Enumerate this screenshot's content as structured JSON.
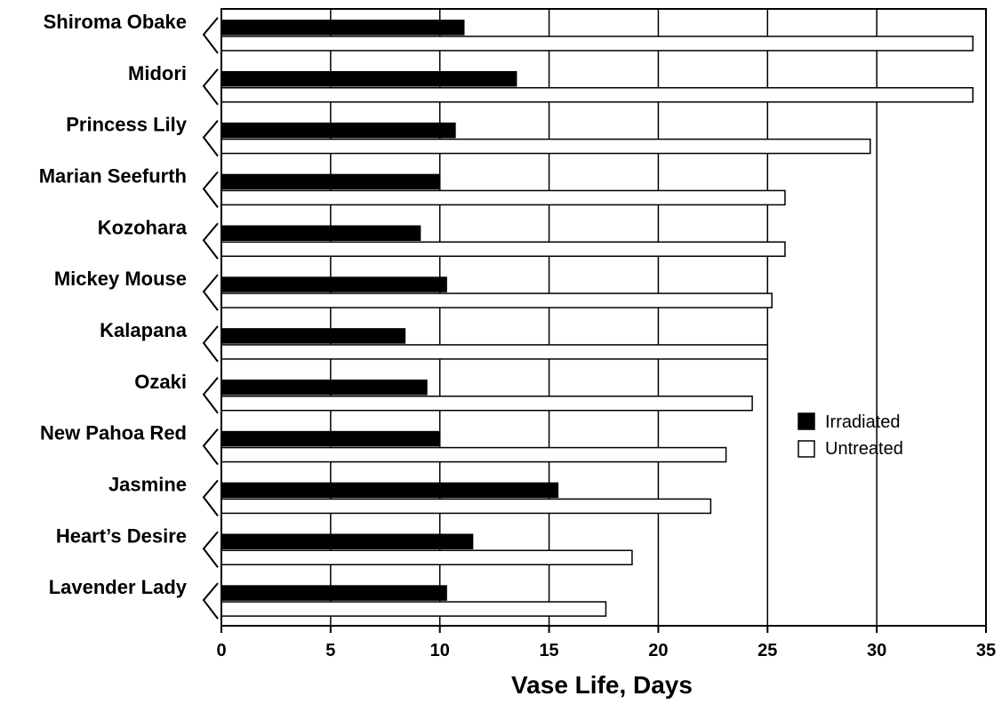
{
  "chart_data": {
    "type": "bar",
    "orientation": "horizontal",
    "categories": [
      "Shiroma Obake",
      "Midori",
      "Princess Lily",
      "Marian Seefurth",
      "Kozohara",
      "Mickey Mouse",
      "Kalapana",
      "Ozaki",
      "New Pahoa Red",
      "Jasmine",
      "Heart’s Desire",
      "Lavender Lady"
    ],
    "series": [
      {
        "name": "Irradiated",
        "color": "#000000",
        "values": [
          11.1,
          13.5,
          10.7,
          10.0,
          9.1,
          10.3,
          8.4,
          9.4,
          10.0,
          15.4,
          11.5,
          10.3
        ]
      },
      {
        "name": "Untreated",
        "color": "#ffffff",
        "values": [
          34.4,
          34.4,
          29.7,
          25.8,
          25.8,
          25.2,
          25.0,
          24.3,
          23.1,
          22.4,
          18.8,
          17.6
        ]
      }
    ],
    "xlabel": "Vase Life, Days",
    "xlim": [
      0,
      35
    ],
    "xticks": [
      0,
      5,
      10,
      15,
      20,
      25,
      30,
      35
    ],
    "grid": "vertical",
    "legend_position": "right"
  }
}
